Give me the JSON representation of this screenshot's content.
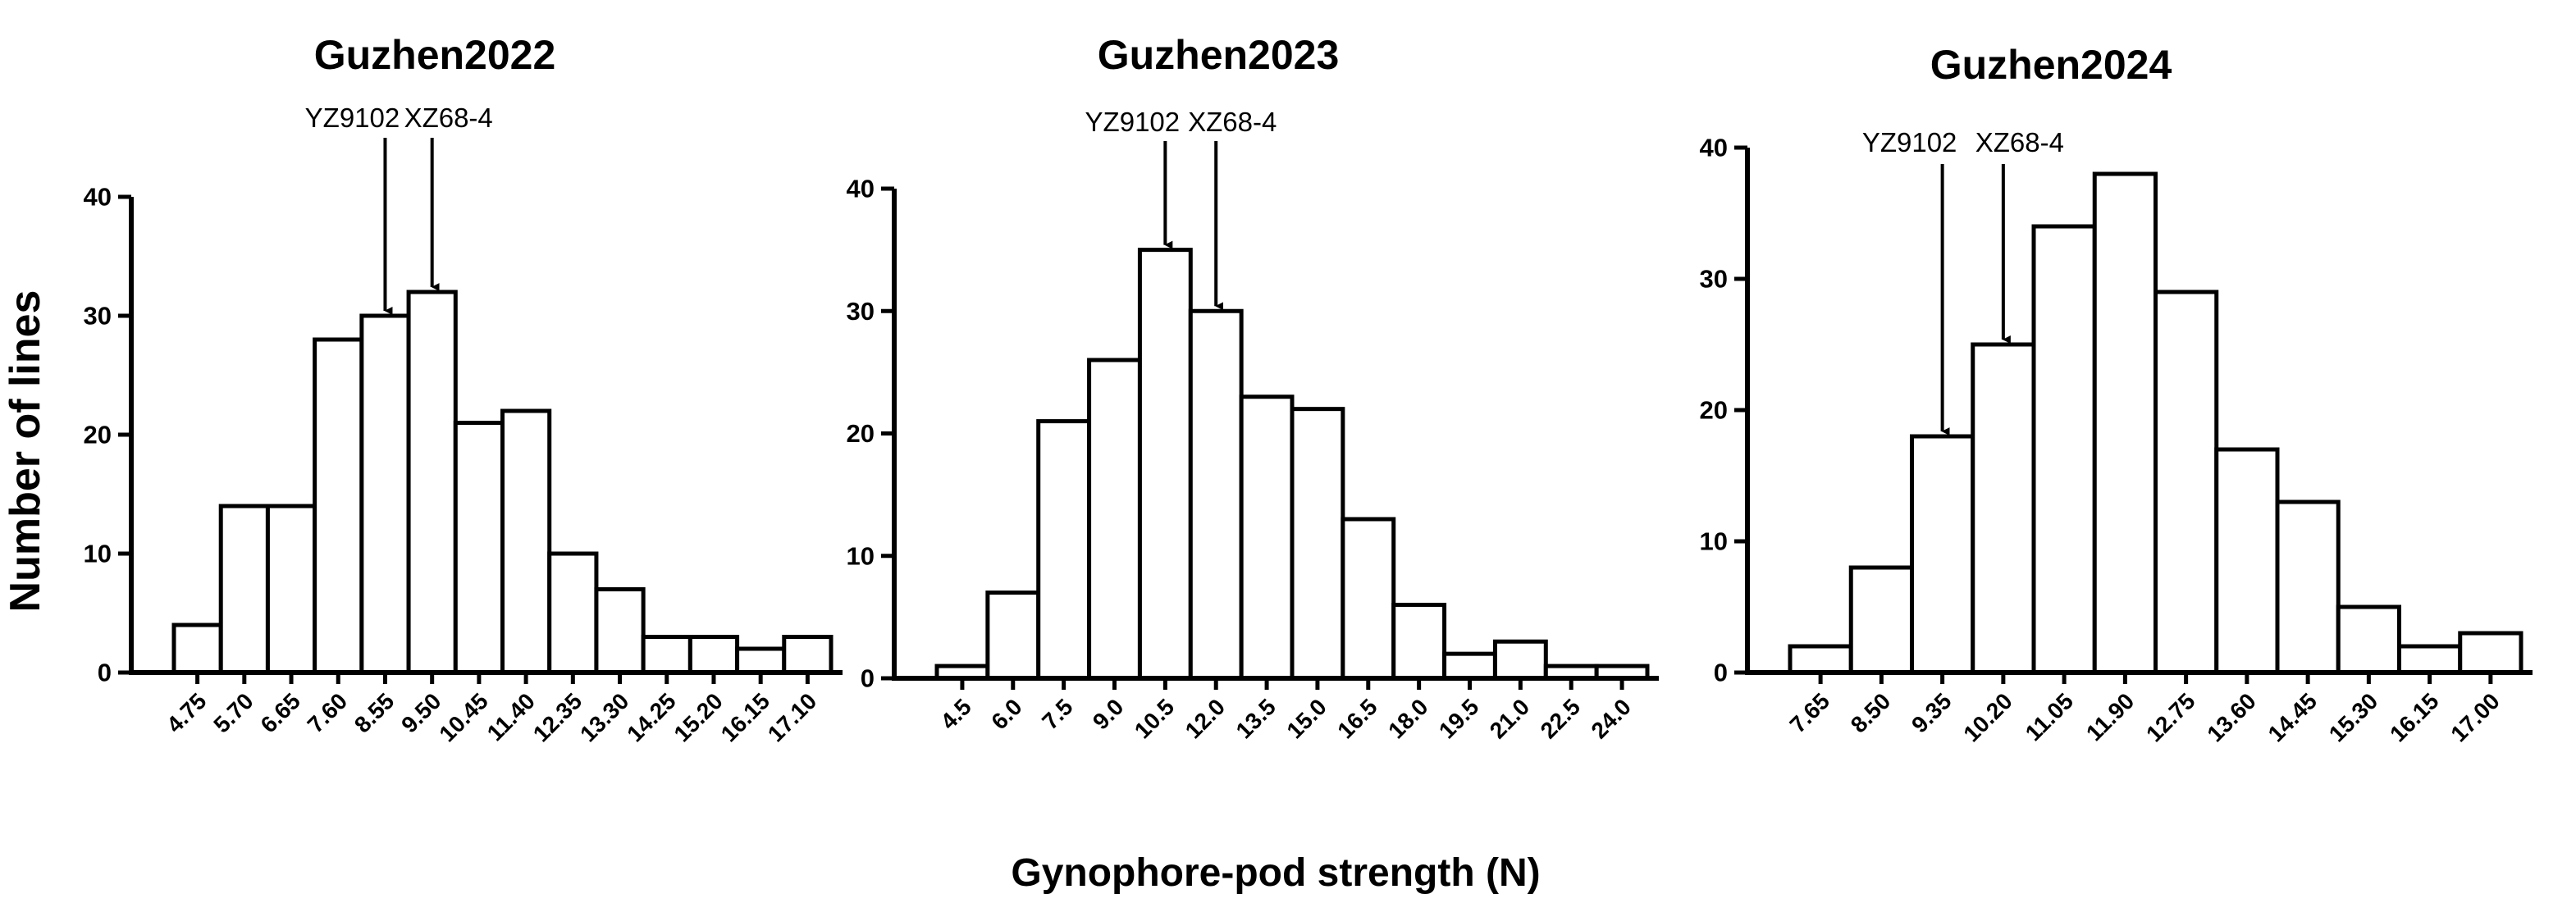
{
  "figure": {
    "ylabel": "Number of lines",
    "xlabel": "Gynophore-pod strength (N)"
  },
  "chart_data": [
    {
      "type": "bar",
      "title": "Guzhen2022",
      "categories": [
        "4.75",
        "5.70",
        "6.65",
        "7.60",
        "8.55",
        "9.50",
        "10.45",
        "11.40",
        "12.35",
        "13.30",
        "14.25",
        "15.20",
        "16.15",
        "17.10"
      ],
      "values": [
        4,
        14,
        14,
        28,
        30,
        32,
        21,
        22,
        10,
        7,
        3,
        3,
        2,
        3
      ],
      "ylim": [
        0,
        40
      ],
      "yticks": [
        "0",
        "10",
        "20",
        "30",
        "40"
      ],
      "grid": false,
      "annotations": [
        {
          "label": "YZ9102",
          "category": "8.55"
        },
        {
          "label": "XZ68-4",
          "category": "9.50"
        }
      ]
    },
    {
      "type": "bar",
      "title": "Guzhen2023",
      "categories": [
        "4.5",
        "6.0",
        "7.5",
        "9.0",
        "10.5",
        "12.0",
        "13.5",
        "15.0",
        "16.5",
        "18.0",
        "19.5",
        "21.0",
        "22.5",
        "24.0"
      ],
      "values": [
        1,
        7,
        21,
        26,
        35,
        30,
        23,
        22,
        13,
        6,
        2,
        3,
        1,
        1
      ],
      "ylim": [
        0,
        40
      ],
      "yticks": [
        "0",
        "10",
        "20",
        "30",
        "40"
      ],
      "grid": false,
      "annotations": [
        {
          "label": "YZ9102",
          "category": "10.5"
        },
        {
          "label": "XZ68-4",
          "category": "12.0"
        }
      ]
    },
    {
      "type": "bar",
      "title": "Guzhen2024",
      "categories": [
        "7.65",
        "8.50",
        "9.35",
        "10.20",
        "11.05",
        "11.90",
        "12.75",
        "13.60",
        "14.45",
        "15.30",
        "16.15",
        "17.00"
      ],
      "values": [
        2,
        8,
        18,
        25,
        34,
        38,
        29,
        17,
        13,
        5,
        2,
        3
      ],
      "ylim": [
        0,
        40
      ],
      "yticks": [
        "0",
        "10",
        "20",
        "30",
        "40"
      ],
      "grid": false,
      "annotations": [
        {
          "label": "YZ9102",
          "category": "9.35"
        },
        {
          "label": "XZ68-4",
          "category": "10.20"
        }
      ]
    }
  ]
}
